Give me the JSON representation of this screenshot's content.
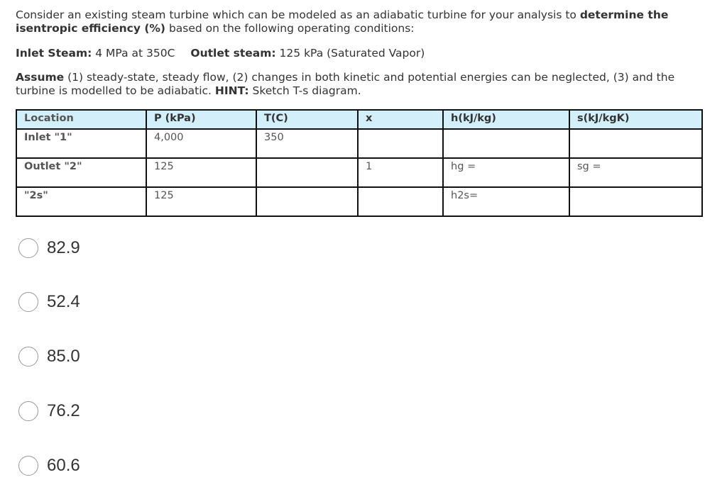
{
  "question": {
    "p1_a": "Consider an existing steam turbine which can be modeled as an adiabatic turbine for your analysis to ",
    "p1_b": "determine the isentropic efficiency (%)",
    "p1_c": " based on the following operating conditions:",
    "inlet_label": "Inlet Steam:",
    "inlet_value": " 4 MPa at 350C",
    "outlet_label": "Outlet steam:",
    "outlet_value": " 125 kPa (Saturated Vapor)",
    "assume_label": "Assume",
    "assume_text": " (1) steady-state, steady flow, (2) changes in both kinetic and potential energies can be neglected, (3) and the turbine is modelled to be adiabatic. ",
    "hint_label": "HINT:",
    "hint_text": " Sketch T-s diagram."
  },
  "table": {
    "headers": [
      "Location",
      "P (kPa)",
      "T(C)",
      "x",
      "h(kJ/kg)",
      "s(kJ/kgK)"
    ],
    "rows": [
      [
        "Inlet \"1\"",
        "4,000",
        "350",
        "",
        "",
        ""
      ],
      [
        "Outlet \"2\"",
        "125",
        "",
        "1",
        "hg =",
        "sg ="
      ],
      [
        "\"2s\"",
        "125",
        "",
        "",
        "h2s=",
        ""
      ]
    ]
  },
  "options": [
    "82.9",
    "52.4",
    "85.0",
    "76.2",
    "60.6"
  ]
}
